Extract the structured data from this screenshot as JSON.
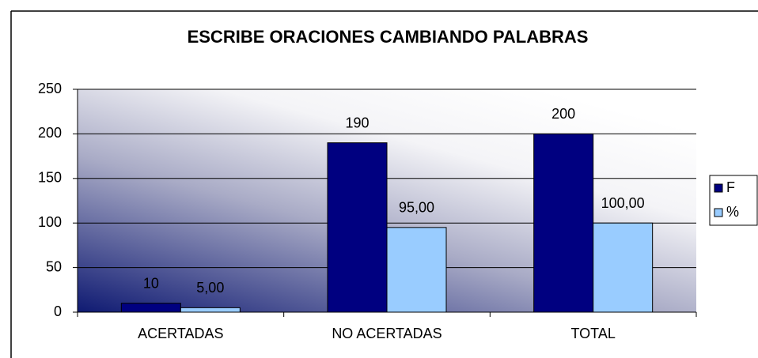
{
  "chart_data": {
    "type": "bar",
    "title": "ESCRIBE ORACIONES CAMBIANDO PALABRAS",
    "categories": [
      "ACERTADAS",
      "NO ACERTADAS",
      "TOTAL"
    ],
    "series": [
      {
        "name": "F",
        "color": "#000080",
        "values": [
          10,
          190,
          200
        ]
      },
      {
        "name": "%",
        "color": "#99ccff",
        "values": [
          5,
          95,
          100
        ],
        "value_labels": [
          "5,00",
          "95,00",
          "100,00"
        ]
      }
    ],
    "ylim": [
      0,
      250
    ],
    "yticks": [
      0,
      50,
      100,
      150,
      200,
      250
    ],
    "grid": true,
    "legend": "right"
  }
}
